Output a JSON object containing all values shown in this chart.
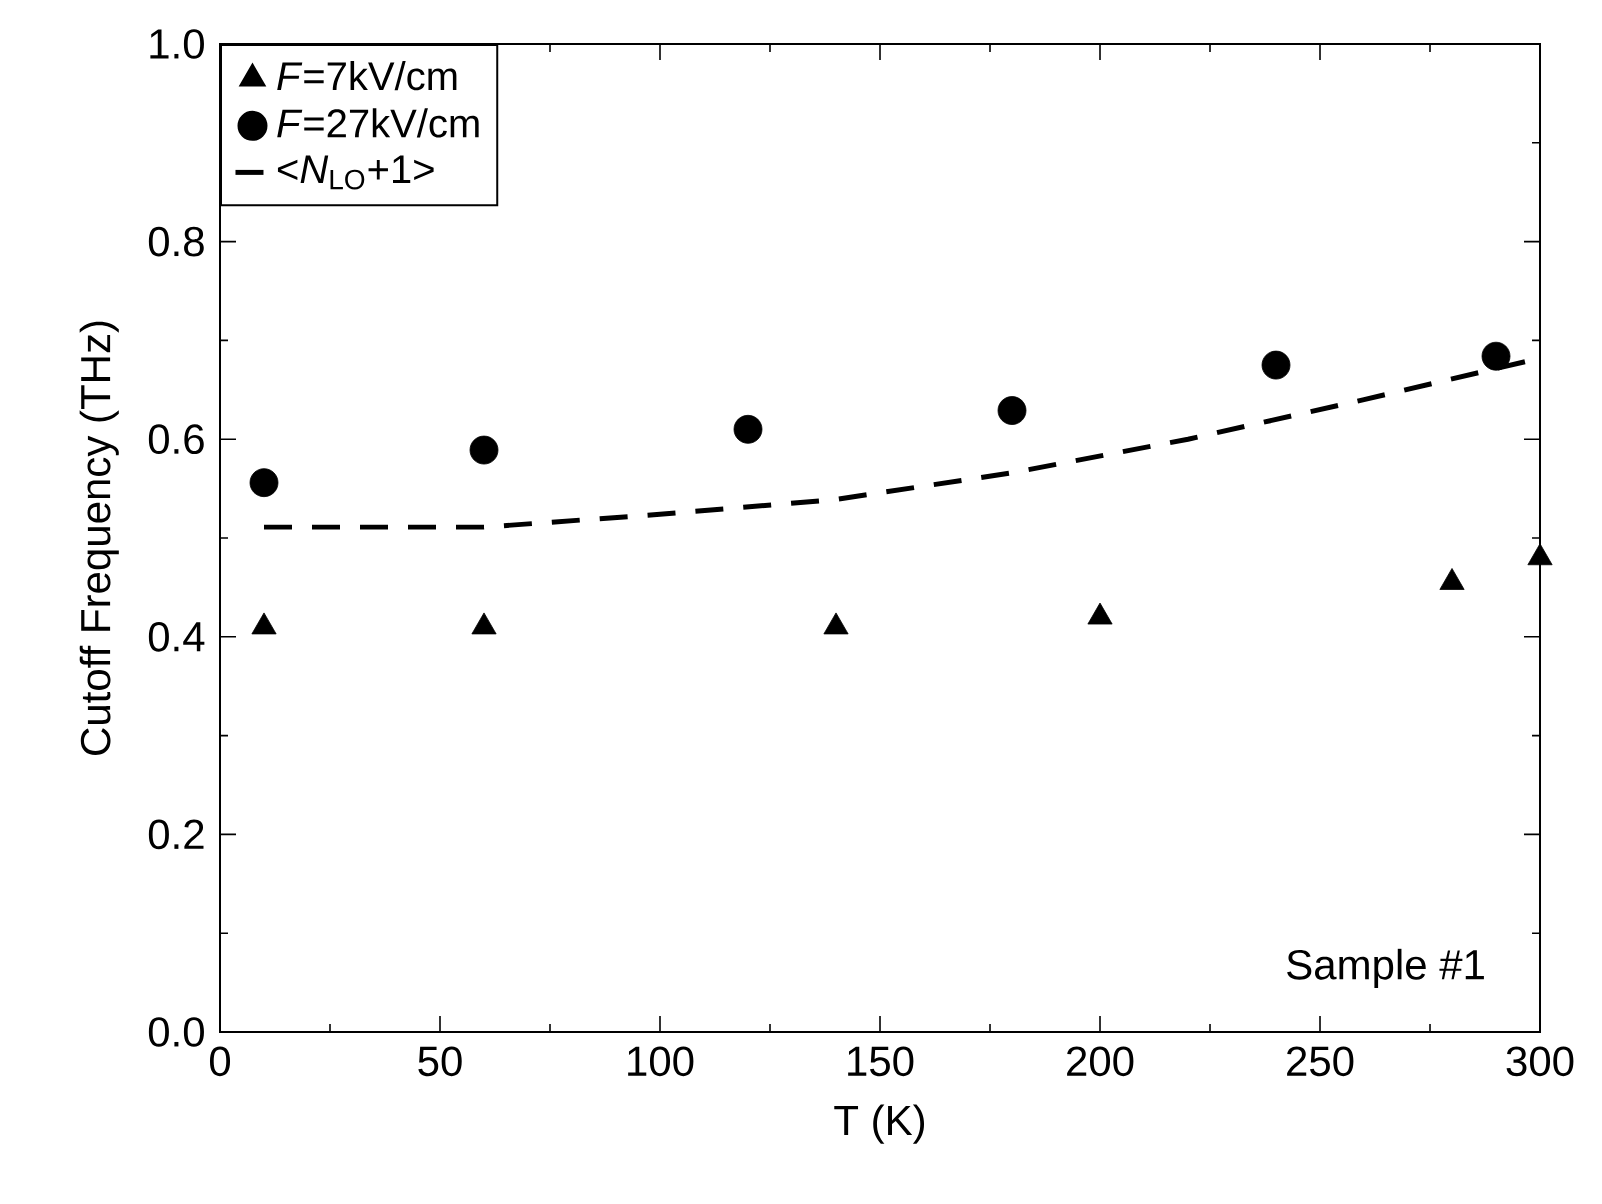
{
  "chart_data": {
    "type": "scatter",
    "xlabel": "T (K)",
    "ylabel": "Cutoff Frequency (THz)",
    "series": [
      {
        "name": "*F*=7kV/cm",
        "color": "#000000",
        "marker": "triangle",
        "x": [
          10,
          60,
          140,
          200,
          280,
          300
        ],
        "values": [
          0.41,
          0.41,
          0.41,
          0.42,
          0.455,
          0.48
        ]
      },
      {
        "name": "*F*=27kV/cm",
        "color": "#000000",
        "marker": "circle",
        "x": [
          10,
          60,
          120,
          180,
          240,
          290
        ],
        "values": [
          0.556,
          0.589,
          0.61,
          0.629,
          0.675,
          0.684
        ]
      },
      {
        "name": "<*N*$_{LO}$+1>",
        "type": "line",
        "color": "#000000",
        "marker": "none",
        "line_style": "dashed",
        "x": [
          10,
          60,
          100,
          140,
          180,
          220,
          260,
          300
        ],
        "values": [
          0.511,
          0.511,
          0.524,
          0.539,
          0.566,
          0.6,
          0.64,
          0.682
        ]
      }
    ],
    "xlim": [
      0,
      300
    ],
    "ylim": [
      0.0,
      1.0
    ],
    "xticks": [
      0,
      50,
      100,
      150,
      200,
      250,
      300
    ],
    "yticks": [
      {
        "value": 0.0,
        "label": "0.0"
      },
      {
        "value": 0.2,
        "label": "0.2"
      },
      {
        "value": 0.4,
        "label": "0.4"
      },
      {
        "value": 0.6,
        "label": "0.6"
      },
      {
        "value": 0.8,
        "label": "0.8"
      },
      {
        "value": 1.0,
        "label": "1.0"
      }
    ],
    "legend": "top left",
    "annotations": [
      "Sample #1"
    ]
  }
}
